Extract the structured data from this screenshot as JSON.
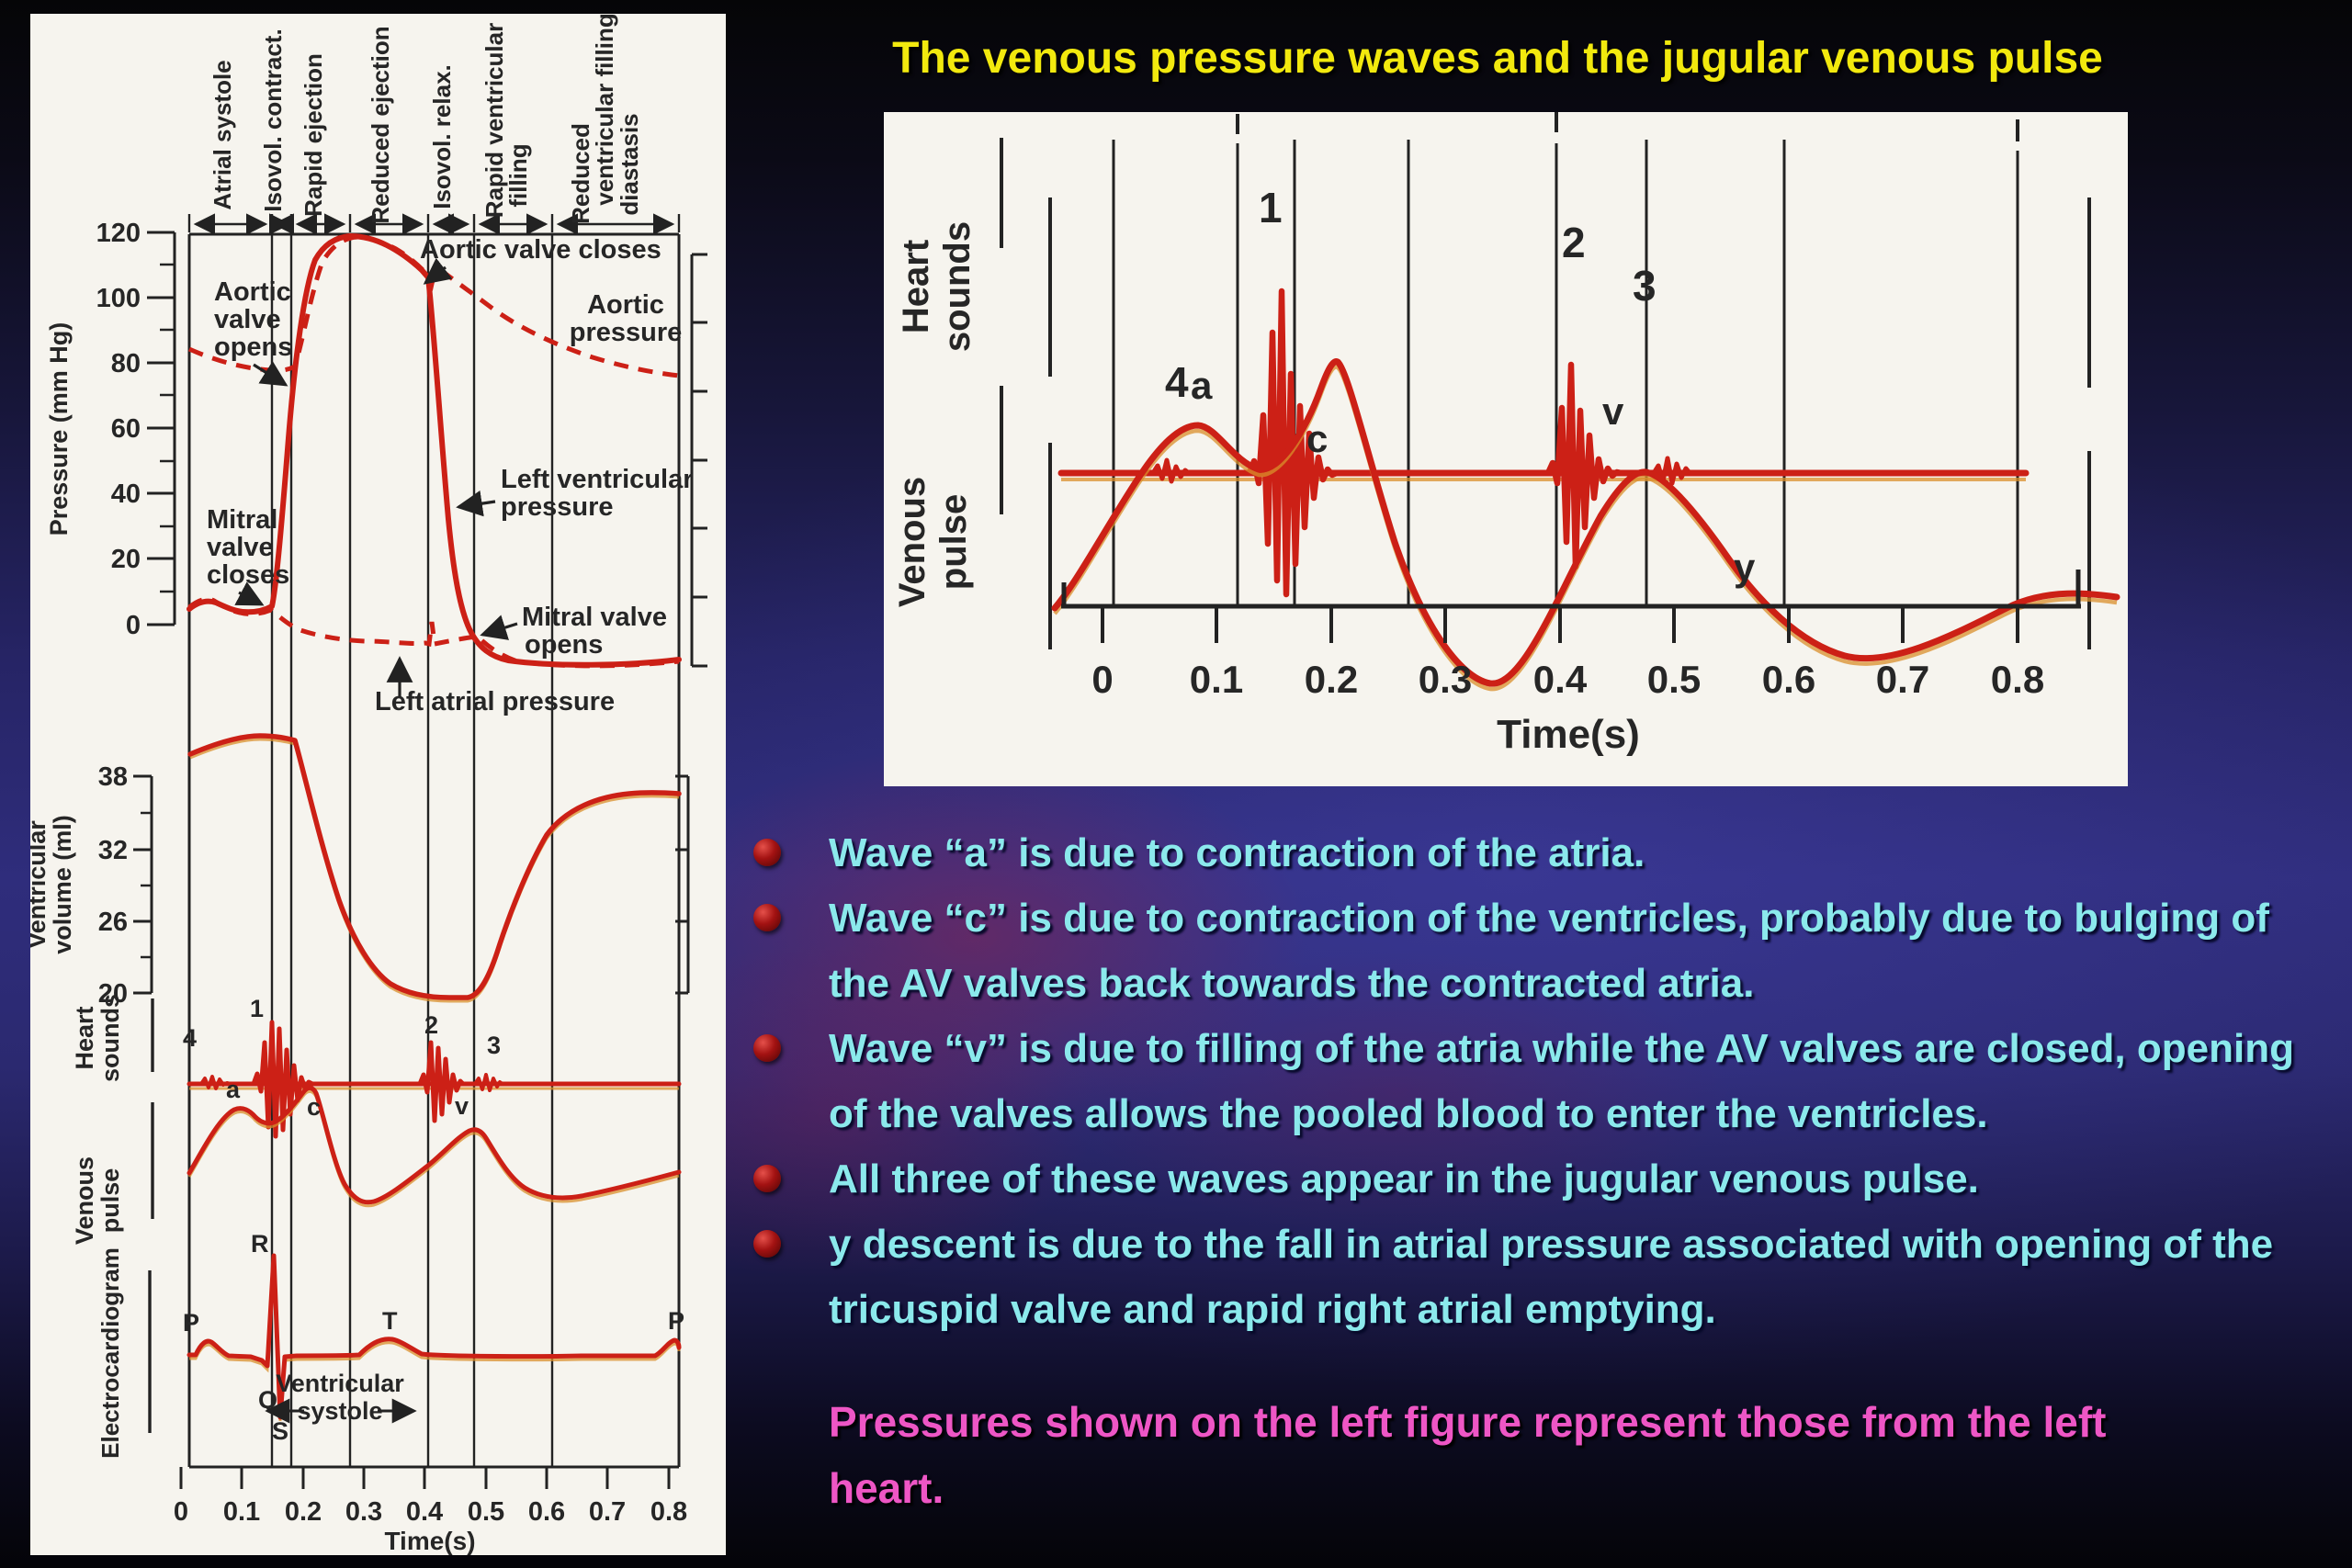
{
  "slide": {
    "title": "The venous pressure waves and the jugular venous pulse"
  },
  "left_figure": {
    "phase_columns": [
      "Atrial systole",
      "Isovol. contract.",
      "Rapid ejection",
      "Reduced ejection",
      "Isovol. relax.",
      "Rapid ventricular",
      "filling",
      "Reduced",
      "ventricular filling",
      "diastasis"
    ],
    "pressure_axis": {
      "label": "Pressure (mm Hg)",
      "ticks": [
        "120",
        "100",
        "80",
        "60",
        "40",
        "20",
        "0"
      ]
    },
    "volume_axis": {
      "label_lines": [
        "Ventricular",
        "volume (ml)"
      ],
      "ticks": [
        "38",
        "32",
        "26",
        "20"
      ]
    },
    "annotations": {
      "aortic_valve_closes": "Aortic valve closes",
      "aortic_pressure_lines": [
        "Aortic",
        "pressure"
      ],
      "aortic_valve_opens_lines": [
        "Aortic",
        "valve",
        "opens"
      ],
      "left_ventricular_pressure_lines": [
        "Left ventricular",
        "pressure"
      ],
      "mitral_valve_closes_lines": [
        "Mitral",
        "valve",
        "closes"
      ],
      "mitral_valve_opens_lines": [
        "Mitral valve",
        "opens"
      ],
      "left_atrial_pressure": "Left atrial pressure"
    },
    "heart_sounds": {
      "label_lines": [
        "Heart",
        "sounds"
      ],
      "numbers": [
        "4",
        "1",
        "2",
        "3"
      ]
    },
    "venous_pulse": {
      "label_lines": [
        "Venous",
        "pulse"
      ],
      "letters": [
        "a",
        "c",
        "v"
      ]
    },
    "ecg": {
      "label": "Electrocardiogram",
      "letters": [
        "P",
        "Q",
        "R",
        "S",
        "T",
        "P"
      ],
      "systole_lines": [
        "Ventricular",
        "systole"
      ]
    },
    "time_axis": {
      "ticks": [
        "0",
        "0.1",
        "0.2",
        "0.3",
        "0.4",
        "0.5",
        "0.6",
        "0.7",
        "0.8"
      ],
      "label": "Time(s)"
    }
  },
  "right_figure": {
    "heart_sounds_label_lines": [
      "Heart",
      "sounds"
    ],
    "venous_pulse_label_lines": [
      "Venous",
      "pulse"
    ],
    "sound_numbers": [
      "4",
      "1",
      "2",
      "3"
    ],
    "wave_letters": [
      "a",
      "c",
      "v",
      "y"
    ],
    "time_axis": {
      "ticks": [
        "0",
        "0.1",
        "0.2",
        "0.3",
        "0.4",
        "0.5",
        "0.6",
        "0.7",
        "0.8"
      ],
      "label": "Time(s)"
    }
  },
  "bullets": [
    "Wave “a” is due to contraction of the atria.",
    "Wave “c” is due to contraction of the ventricles, probably due to bulging of\nthe AV valves back towards the contracted atria.",
    "Wave “v” is due to filling of the atria while the AV valves are closed, opening\nof the valves allows the pooled blood to enter the ventricles.",
    "All three of these waves appear in the jugular venous pulse.",
    "y descent is due to the fall in atrial pressure associated with opening of the\ntricuspid valve and rapid right atrial emptying."
  ],
  "note": "Pressures shown on the left figure represent those from the left\nheart.",
  "colors": {
    "title": "#f2e90e",
    "bullet_text": "#8be9ec",
    "bullet_marker": "#a31212",
    "note_text": "#ee56c5",
    "waveform_red": "#cc2016",
    "figure_paper": "#f6f4ee"
  }
}
